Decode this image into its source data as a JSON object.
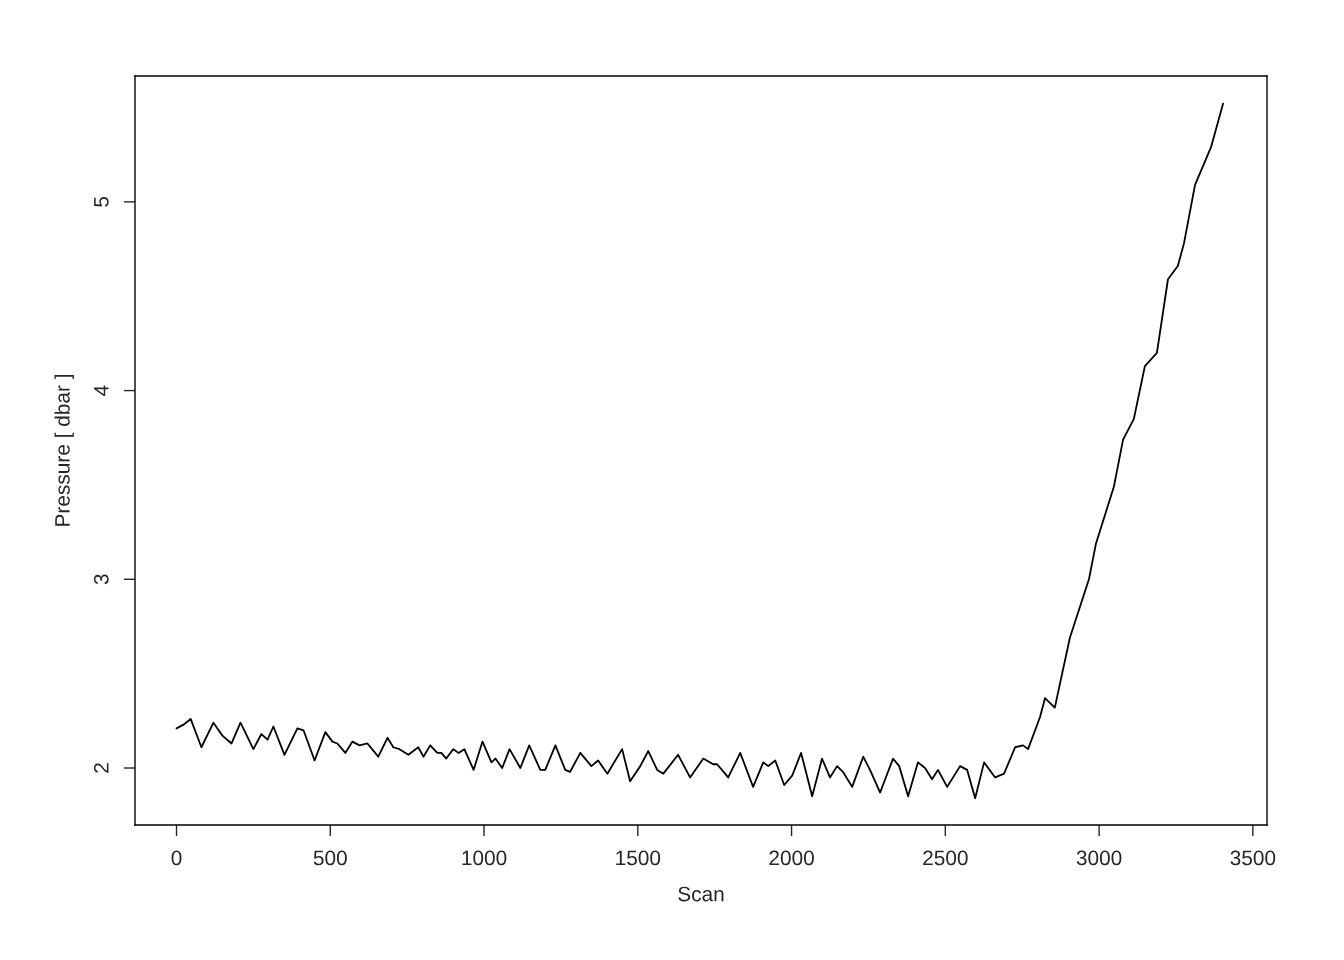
{
  "chart_data": {
    "type": "line",
    "xlabel": "Scan",
    "ylabel": "Pressure [ dbar ]",
    "xlim": [
      -135,
      3546
    ],
    "ylim": [
      1.698,
      5.667
    ],
    "xticks": [
      0,
      500,
      1000,
      1500,
      2000,
      2500,
      3000,
      3500
    ],
    "yticks": [
      2,
      3,
      4,
      5
    ],
    "grid": false,
    "legend": false,
    "marker": "none",
    "line_style": "solid",
    "series": [
      {
        "color": "#000000",
        "x": [
          0,
          23,
          46,
          81,
          120,
          150,
          179,
          208,
          250,
          276,
          296,
          315,
          351,
          393,
          413,
          449,
          484,
          507,
          523,
          549,
          572,
          595,
          621,
          656,
          686,
          705,
          725,
          754,
          786,
          803,
          825,
          848,
          861,
          877,
          900,
          917,
          936,
          966,
          995,
          1024,
          1037,
          1059,
          1083,
          1118,
          1147,
          1183,
          1199,
          1232,
          1264,
          1280,
          1313,
          1349,
          1371,
          1401,
          1449,
          1475,
          1508,
          1534,
          1563,
          1583,
          1631,
          1670,
          1713,
          1745,
          1758,
          1794,
          1833,
          1875,
          1908,
          1924,
          1947,
          1976,
          2002,
          2031,
          2067,
          2099,
          2125,
          2148,
          2167,
          2197,
          2233,
          2255,
          2288,
          2330,
          2350,
          2379,
          2411,
          2434,
          2457,
          2476,
          2506,
          2548,
          2571,
          2597,
          2626,
          2662,
          2691,
          2727,
          2753,
          2769,
          2808,
          2824,
          2856,
          2905,
          2967,
          2990,
          3048,
          3078,
          3113,
          3149,
          3188,
          3224,
          3256,
          3276,
          3312,
          3364,
          3403
        ],
        "values": [
          2.21,
          2.23,
          2.26,
          2.11,
          2.24,
          2.17,
          2.13,
          2.24,
          2.1,
          2.18,
          2.15,
          2.22,
          2.07,
          2.21,
          2.2,
          2.04,
          2.19,
          2.14,
          2.13,
          2.08,
          2.14,
          2.12,
          2.13,
          2.06,
          2.16,
          2.11,
          2.1,
          2.07,
          2.11,
          2.06,
          2.12,
          2.08,
          2.08,
          2.05,
          2.1,
          2.08,
          2.1,
          1.99,
          2.14,
          2.03,
          2.05,
          2.0,
          2.1,
          2.0,
          2.12,
          1.99,
          1.99,
          2.12,
          1.99,
          1.98,
          2.08,
          2.01,
          2.04,
          1.97,
          2.1,
          1.93,
          2.01,
          2.09,
          1.99,
          1.97,
          2.07,
          1.95,
          2.05,
          2.02,
          2.02,
          1.95,
          2.08,
          1.9,
          2.03,
          2.01,
          2.04,
          1.91,
          1.96,
          2.08,
          1.85,
          2.05,
          1.95,
          2.01,
          1.98,
          1.9,
          2.06,
          1.99,
          1.87,
          2.05,
          2.01,
          1.85,
          2.03,
          2.0,
          1.94,
          1.99,
          1.9,
          2.01,
          1.99,
          1.84,
          2.03,
          1.95,
          1.97,
          2.11,
          2.12,
          2.1,
          2.27,
          2.37,
          2.32,
          2.69,
          3.0,
          3.19,
          3.49,
          3.74,
          3.85,
          4.13,
          4.2,
          4.59,
          4.66,
          4.78,
          5.09,
          5.29,
          5.52
        ]
      }
    ]
  }
}
